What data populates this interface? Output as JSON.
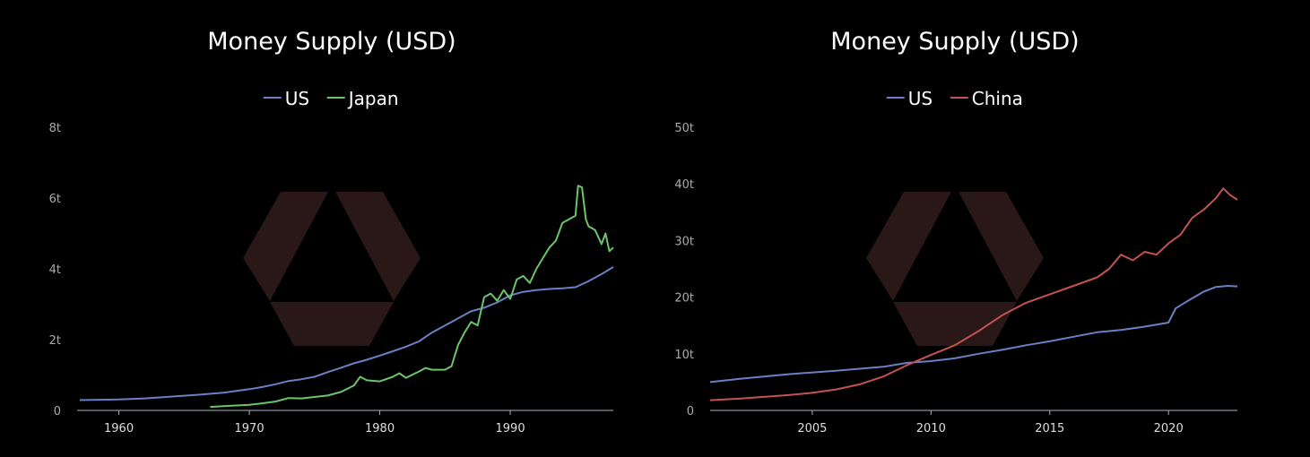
{
  "colors": {
    "background": "#000000",
    "us": "#6b7fc4",
    "japan": "#6cc46a",
    "china": "#c45252",
    "watermark": "#2a1818"
  },
  "watermark": {
    "icon": "hexagon-logo-icon"
  },
  "chart_data": [
    {
      "type": "line",
      "title": "Money Supply (USD)",
      "legend_placement": "top-center",
      "grid": false,
      "xlim": [
        1956.8,
        1997.9
      ],
      "ylim": [
        0,
        8
      ],
      "y_ticks": [
        0,
        2,
        4,
        6,
        8
      ],
      "y_tick_labels": [
        "0",
        "2t",
        "4t",
        "6t",
        "8t"
      ],
      "x_ticks": [
        1960,
        1970,
        1980,
        1990
      ],
      "x_tick_labels": [
        "1960",
        "1970",
        "1980",
        "1990"
      ],
      "series": [
        {
          "name": "US",
          "x": [
            1957,
            1960,
            1962,
            1964,
            1966,
            1968,
            1970,
            1971,
            1972,
            1973,
            1974,
            1975,
            1976,
            1977,
            1978,
            1979,
            1980,
            1981,
            1982,
            1983,
            1984,
            1985,
            1986,
            1987,
            1988,
            1989,
            1990,
            1991,
            1992,
            1993,
            1994,
            1995,
            1996,
            1997,
            1997.9
          ],
          "y": [
            0.29,
            0.31,
            0.34,
            0.39,
            0.44,
            0.5,
            0.6,
            0.66,
            0.74,
            0.83,
            0.88,
            0.95,
            1.08,
            1.2,
            1.33,
            1.43,
            1.55,
            1.67,
            1.8,
            1.95,
            2.2,
            2.4,
            2.6,
            2.8,
            2.9,
            3.05,
            3.25,
            3.35,
            3.4,
            3.43,
            3.45,
            3.48,
            3.65,
            3.85,
            4.05
          ]
        },
        {
          "name": "Japan",
          "x": [
            1967,
            1968,
            1969,
            1970,
            1971,
            1972,
            1973,
            1974,
            1975,
            1976,
            1977,
            1978,
            1978.5,
            1979,
            1980,
            1981,
            1981.5,
            1982,
            1983,
            1983.5,
            1984,
            1985,
            1985.5,
            1986,
            1986.5,
            1987,
            1987.5,
            1988,
            1988.5,
            1989,
            1989.5,
            1990,
            1990.5,
            1991,
            1991.5,
            1992,
            1992.5,
            1993,
            1993.5,
            1994,
            1994.5,
            1995,
            1995.2,
            1995.5,
            1995.8,
            1996,
            1996.5,
            1997,
            1997.3,
            1997.6,
            1997.9
          ],
          "y": [
            0.1,
            0.12,
            0.14,
            0.16,
            0.2,
            0.25,
            0.35,
            0.34,
            0.38,
            0.42,
            0.52,
            0.7,
            0.95,
            0.85,
            0.82,
            0.95,
            1.05,
            0.92,
            1.1,
            1.2,
            1.15,
            1.15,
            1.25,
            1.85,
            2.2,
            2.5,
            2.4,
            3.2,
            3.3,
            3.1,
            3.4,
            3.15,
            3.7,
            3.8,
            3.6,
            4.0,
            4.3,
            4.6,
            4.8,
            5.3,
            5.4,
            5.5,
            6.35,
            6.3,
            5.4,
            5.2,
            5.1,
            4.7,
            5.0,
            4.5,
            4.6
          ]
        }
      ]
    },
    {
      "type": "line",
      "title": "Money Supply (USD)",
      "legend_placement": "top-center",
      "grid": false,
      "xlim": [
        2000.7,
        2022.9
      ],
      "ylim": [
        0,
        50
      ],
      "y_ticks": [
        0,
        10,
        20,
        30,
        40,
        50
      ],
      "y_tick_labels": [
        "0",
        "10t",
        "20t",
        "30t",
        "40t",
        "50t"
      ],
      "x_ticks": [
        2005,
        2010,
        2015,
        2020
      ],
      "x_tick_labels": [
        "2005",
        "2010",
        "2015",
        "2020"
      ],
      "series": [
        {
          "name": "US",
          "x": [
            2000.7,
            2002,
            2004,
            2006,
            2008,
            2009,
            2010,
            2011,
            2012,
            2013,
            2014,
            2015,
            2016,
            2017,
            2018,
            2019,
            2020,
            2020.3,
            2020.6,
            2021,
            2021.5,
            2022,
            2022.5,
            2022.9
          ],
          "y": [
            5.0,
            5.6,
            6.4,
            7.0,
            7.7,
            8.4,
            8.7,
            9.2,
            10.0,
            10.7,
            11.5,
            12.2,
            13.0,
            13.8,
            14.2,
            14.8,
            15.5,
            18.0,
            18.8,
            19.8,
            21.0,
            21.8,
            22.0,
            21.9
          ]
        },
        {
          "name": "China",
          "x": [
            2000.7,
            2002,
            2004,
            2005,
            2006,
            2007,
            2008,
            2009,
            2010,
            2011,
            2012,
            2013,
            2014,
            2015,
            2016,
            2017,
            2017.5,
            2018,
            2018.5,
            2019,
            2019.5,
            2020,
            2020.5,
            2021,
            2021.5,
            2022,
            2022.3,
            2022.6,
            2022.9
          ],
          "y": [
            1.8,
            2.1,
            2.7,
            3.1,
            3.7,
            4.6,
            6.0,
            8.0,
            9.8,
            11.5,
            14.0,
            16.8,
            19.0,
            20.5,
            22.0,
            23.5,
            25.0,
            27.5,
            26.5,
            28.0,
            27.5,
            29.5,
            31.0,
            34.0,
            35.5,
            37.5,
            39.2,
            38.0,
            37.2
          ]
        }
      ]
    }
  ]
}
